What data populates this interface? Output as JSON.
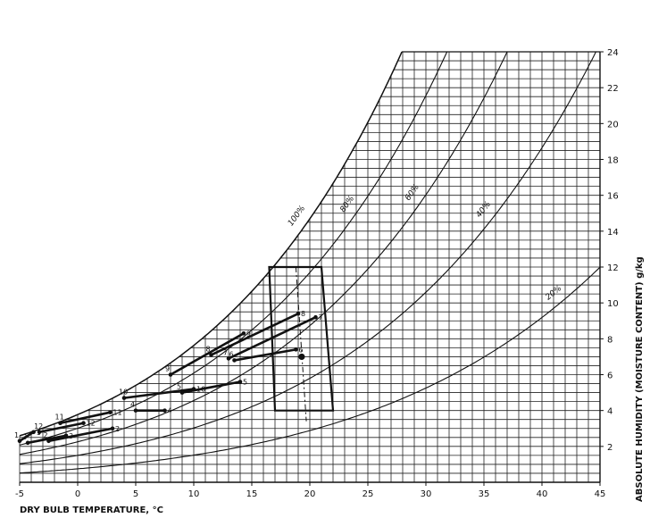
{
  "chart_data": {
    "type": "line",
    "title": "",
    "xlabel": "DRY BULB TEMPERATURE, °C",
    "ylabel": "ABSOLUTE HUMIDITY (MOISTURE CONTENT) g/kg",
    "xlim": [
      -5,
      45
    ],
    "ylim": [
      0,
      24
    ],
    "x_ticks": [
      -5,
      0,
      5,
      10,
      15,
      20,
      25,
      30,
      35,
      40,
      45
    ],
    "y_ticks": [
      2,
      4,
      6,
      8,
      10,
      12,
      14,
      16,
      18,
      20,
      22,
      24
    ],
    "grid": "on",
    "rh_curves": [
      {
        "label": "100%",
        "rh": 100
      },
      {
        "label": "80%",
        "rh": 80
      },
      {
        "label": "60%",
        "rh": 60
      },
      {
        "label": "40%",
        "rh": 40
      },
      {
        "label": "20%",
        "rh": 20
      }
    ],
    "comfort_zone": [
      [
        16.5,
        12
      ],
      [
        21,
        12
      ],
      [
        22,
        4
      ],
      [
        17,
        4
      ]
    ],
    "comfort_center": [
      19.3,
      7
    ],
    "ranges": [
      {
        "month": "1",
        "min": [
          -5,
          2.3
        ],
        "max": [
          -3.8,
          2.8
        ]
      },
      {
        "month": "2",
        "min": [
          -2.5,
          2.3
        ],
        "max": [
          3,
          3
        ]
      },
      {
        "month": "3",
        "min": [
          -4.3,
          2.2
        ],
        "max": [
          -1,
          2.6
        ]
      },
      {
        "month": "4",
        "min": [
          5,
          4
        ],
        "max": [
          7.5,
          4
        ]
      },
      {
        "month": "5",
        "min": [
          9,
          5
        ],
        "max": [
          14,
          5.6
        ]
      },
      {
        "month": "6",
        "min": [
          13.5,
          6.8
        ],
        "max": [
          18.8,
          7.4
        ]
      },
      {
        "month": "7",
        "min": [
          13,
          6.9
        ],
        "max": [
          20.5,
          9.2
        ]
      },
      {
        "month": "8",
        "min": [
          11.5,
          7.1
        ],
        "max": [
          19,
          9.4
        ]
      },
      {
        "month": "9",
        "min": [
          8,
          6
        ],
        "max": [
          14.3,
          8.3
        ]
      },
      {
        "month": "10",
        "min": [
          4,
          4.7
        ],
        "max": [
          10,
          5.2
        ]
      },
      {
        "month": "11",
        "min": [
          -1.5,
          3.3
        ],
        "max": [
          2.8,
          3.9
        ]
      },
      {
        "month": "12",
        "min": [
          -3.3,
          2.8
        ],
        "max": [
          0.5,
          3.3
        ]
      }
    ]
  }
}
